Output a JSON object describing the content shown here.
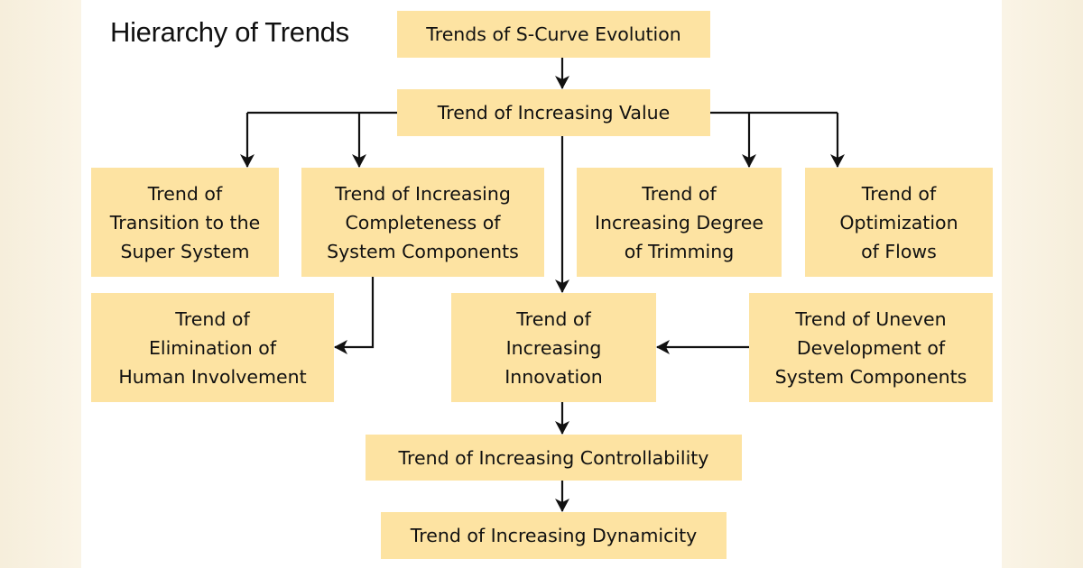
{
  "title": "Hierarchy of Trends",
  "colors": {
    "box_fill": "#fde3a2",
    "arrow": "#111111",
    "side_background": "#f6eedb"
  },
  "nodes": {
    "s_curve": "Trends of S-Curve Evolution",
    "value": "Trend of Increasing Value",
    "transition": "Trend of\nTransition to the\nSuper System",
    "completeness": "Trend of Increasing\nCompleteness of\nSystem Components",
    "trimming": "Trend of\nIncreasing Degree\nof Trimming",
    "flows": "Trend of\nOptimization\nof Flows",
    "elimination": "Trend of\nElimination of\nHuman Involvement",
    "innovation": "Trend of\nIncreasing\nInnovation",
    "uneven": "Trend of Uneven\nDevelopment of\nSystem Components",
    "controllability": "Trend of Increasing Controllability",
    "dynamicity": "Trend of Increasing Dynamicity"
  },
  "edges": [
    [
      "s_curve",
      "value"
    ],
    [
      "value",
      "transition"
    ],
    [
      "value",
      "completeness"
    ],
    [
      "value",
      "trimming"
    ],
    [
      "value",
      "flows"
    ],
    [
      "value",
      "innovation"
    ],
    [
      "completeness",
      "elimination"
    ],
    [
      "uneven",
      "innovation"
    ],
    [
      "innovation",
      "controllability"
    ],
    [
      "controllability",
      "dynamicity"
    ]
  ]
}
